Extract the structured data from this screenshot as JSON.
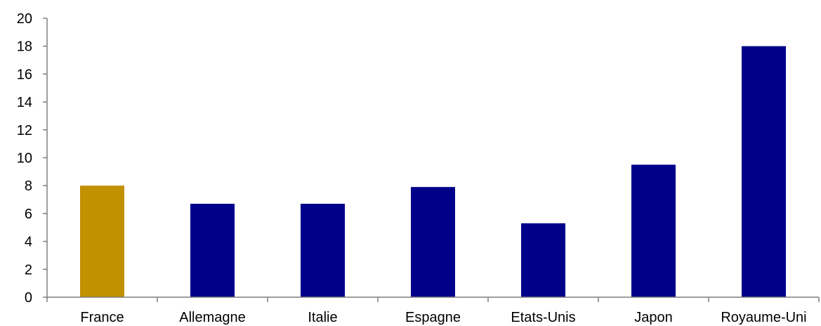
{
  "chart_data": {
    "type": "bar",
    "categories": [
      "France",
      "Allemagne",
      "Italie",
      "Espagne",
      "Etats-Unis",
      "Japon",
      "Royaume-Uni"
    ],
    "values": [
      8.0,
      6.7,
      6.7,
      7.9,
      5.3,
      9.5,
      18.0
    ],
    "bar_colors": [
      "#c19100",
      "#00008b",
      "#00008b",
      "#00008b",
      "#00008b",
      "#00008b",
      "#00008b"
    ],
    "highlight_color": "#c19100",
    "default_color": "#00008b",
    "ylim": [
      0,
      20
    ],
    "yticks": [
      "0",
      "2",
      "4",
      "6",
      "8",
      "10",
      "12",
      "14",
      "16",
      "18",
      "20"
    ],
    "title": "",
    "xlabel": "",
    "ylabel": "",
    "grid": false,
    "legend": "none"
  }
}
